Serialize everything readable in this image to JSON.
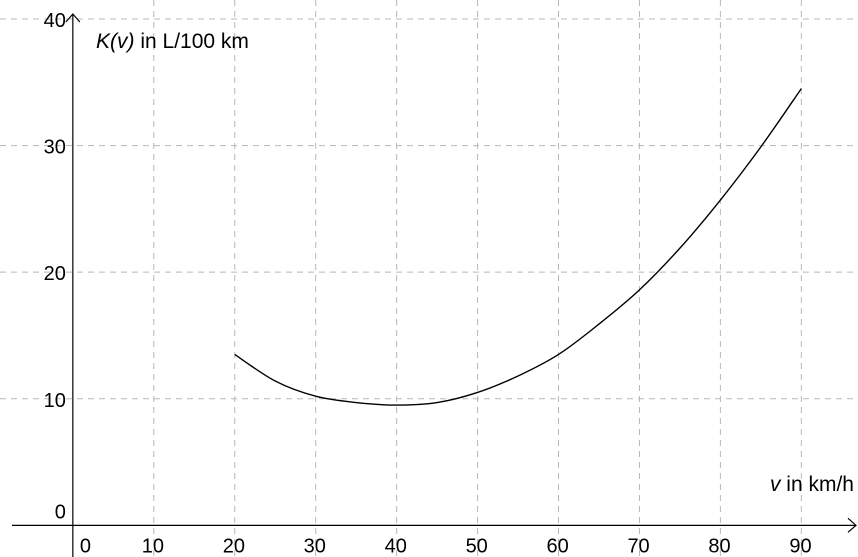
{
  "chart_data": {
    "type": "line",
    "title": "",
    "xlabel": {
      "var": "v",
      "unit": " in km/h"
    },
    "ylabel": {
      "func": "K(v)",
      "unit": " in L/100 km"
    },
    "xlim": [
      -9,
      97
    ],
    "ylim": [
      -2.5,
      41.5
    ],
    "x_ticks": [
      0,
      10,
      20,
      30,
      40,
      50,
      60,
      70,
      80,
      90
    ],
    "y_ticks": [
      0,
      10,
      20,
      30,
      40
    ],
    "grid": true,
    "series": [
      {
        "x": [
          20,
          25,
          30,
          35,
          40,
          45,
          50,
          55,
          60,
          65,
          70,
          75,
          80,
          85,
          90
        ],
        "y": [
          13.5,
          11.4,
          10.2,
          9.7,
          9.5,
          9.7,
          10.5,
          11.8,
          13.5,
          15.9,
          18.6,
          21.9,
          25.7,
          29.9,
          34.5
        ],
        "color": "#000000"
      }
    ]
  }
}
